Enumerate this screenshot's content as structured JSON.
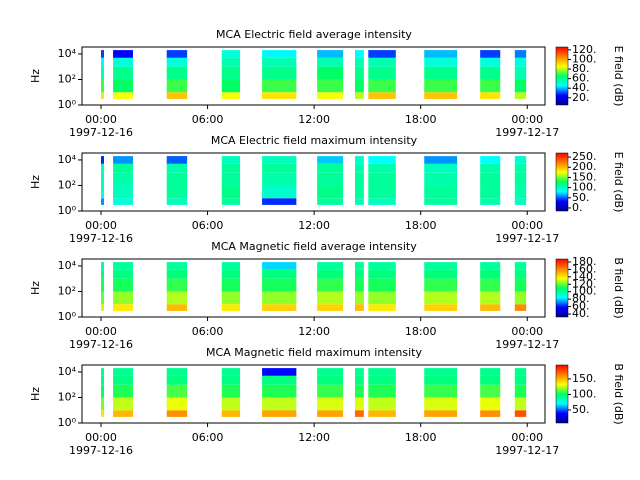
{
  "chart_data": [
    {
      "type": "heatmap",
      "title": "MCA  Electric field average intensity",
      "ylabel": "Hz",
      "colorbar_label": "E field (dB)",
      "xlim": [
        -1.07,
        25
      ],
      "xticks": [
        {
          "value": 0,
          "label": "00:00"
        },
        {
          "value": 6,
          "label": "06:00"
        },
        {
          "value": 12,
          "label": "12:00"
        },
        {
          "value": 18,
          "label": "18:00"
        },
        {
          "value": 24,
          "label": "00:00"
        }
      ],
      "xdates": [
        {
          "value": 0,
          "label": "1997-12-16"
        },
        {
          "value": 24,
          "label": "1997-12-17"
        }
      ],
      "ylim": [
        1,
        35000
      ],
      "log_y": true,
      "yticks": [
        {
          "value": 1,
          "label": "10⁰"
        },
        {
          "value": 100,
          "label": "10²"
        },
        {
          "value": 10000,
          "label": "10⁴"
        }
      ],
      "clim": [
        5,
        126
      ],
      "cticks": [
        {
          "value": 20,
          "label": "20."
        },
        {
          "value": 40,
          "label": "40."
        },
        {
          "value": 60,
          "label": "60."
        },
        {
          "value": 80,
          "label": "80."
        },
        {
          "value": 100,
          "label": "100."
        },
        {
          "value": 120,
          "label": "120."
        }
      ],
      "colormap": [
        "#00008f",
        "#0000ff",
        "#00ffff",
        "#00ff60",
        "#ffff00",
        "#ff8000",
        "#ff0000"
      ],
      "segments": [
        [
          0,
          0.17
        ],
        [
          0.68,
          1.8
        ],
        [
          3.7,
          4.85
        ],
        [
          6.8,
          7.83
        ],
        [
          9.07,
          11.0
        ],
        [
          12.17,
          13.63
        ],
        [
          14.3,
          14.8
        ],
        [
          15.05,
          16.6
        ],
        [
          18.2,
          20.05
        ],
        [
          21.35,
          22.48
        ],
        [
          23.3,
          23.94
        ]
      ],
      "bands": [
        3,
        10,
        100,
        1000,
        5000,
        20000
      ],
      "values": [
        [
          90,
          70,
          55,
          45,
          30
        ],
        [
          85,
          65,
          60,
          50,
          25
        ],
        [
          95,
          70,
          60,
          50,
          30
        ],
        [
          85,
          65,
          60,
          55,
          50
        ],
        [
          90,
          70,
          60,
          55,
          45
        ],
        [
          85,
          70,
          65,
          55,
          40
        ],
        [
          80,
          65,
          60,
          55,
          45
        ],
        [
          95,
          70,
          60,
          55,
          30
        ],
        [
          95,
          70,
          60,
          50,
          40
        ],
        [
          90,
          70,
          60,
          50,
          30
        ],
        [
          80,
          65,
          55,
          50,
          35
        ]
      ]
    },
    {
      "type": "heatmap",
      "title": "MCA  Electric field maximum intensity",
      "ylabel": "Hz",
      "colorbar_label": "E field (dB)",
      "xlim": [
        -1.07,
        25
      ],
      "xticks": [
        {
          "value": 0,
          "label": "00:00"
        },
        {
          "value": 6,
          "label": "06:00"
        },
        {
          "value": 12,
          "label": "12:00"
        },
        {
          "value": 18,
          "label": "18:00"
        },
        {
          "value": 24,
          "label": "00:00"
        }
      ],
      "xdates": [
        {
          "value": 0,
          "label": "1997-12-16"
        },
        {
          "value": 24,
          "label": "1997-12-17"
        }
      ],
      "ylim": [
        1,
        35000
      ],
      "log_y": true,
      "yticks": [
        {
          "value": 1,
          "label": "10⁰"
        },
        {
          "value": 100,
          "label": "10²"
        },
        {
          "value": 10000,
          "label": "10⁴"
        }
      ],
      "clim": [
        -15,
        270
      ],
      "cticks": [
        {
          "value": 0,
          "label": "0."
        },
        {
          "value": 50,
          "label": "50."
        },
        {
          "value": 100,
          "label": "100."
        },
        {
          "value": 150,
          "label": "150."
        },
        {
          "value": 200,
          "label": "200."
        },
        {
          "value": 250,
          "label": "250."
        }
      ],
      "colormap": [
        "#00008f",
        "#0000ff",
        "#00ffff",
        "#00ff60",
        "#ffff00",
        "#ff8000",
        "#ff0000"
      ],
      "segments": [
        [
          0,
          0.17
        ],
        [
          0.68,
          1.8
        ],
        [
          3.7,
          4.85
        ],
        [
          6.8,
          7.83
        ],
        [
          9.07,
          11.0
        ],
        [
          12.17,
          13.63
        ],
        [
          14.3,
          14.8
        ],
        [
          15.05,
          16.6
        ],
        [
          18.2,
          20.05
        ],
        [
          21.35,
          22.48
        ],
        [
          23.3,
          23.94
        ]
      ],
      "bands": [
        3,
        10,
        100,
        1000,
        5000,
        20000
      ],
      "values": [
        [
          60,
          95,
          100,
          100,
          40
        ],
        [
          90,
          100,
          105,
          110,
          60
        ],
        [
          100,
          110,
          110,
          105,
          50
        ],
        [
          110,
          115,
          110,
          110,
          100
        ],
        [
          40,
          95,
          105,
          110,
          100
        ],
        [
          110,
          115,
          110,
          110,
          70
        ],
        [
          100,
          110,
          110,
          105,
          95
        ],
        [
          100,
          110,
          110,
          105,
          80
        ],
        [
          110,
          110,
          105,
          100,
          60
        ],
        [
          105,
          110,
          110,
          105,
          80
        ],
        [
          100,
          105,
          110,
          105,
          95
        ]
      ]
    },
    {
      "type": "heatmap",
      "title": "MCA  Magnetic field average intensity",
      "ylabel": "Hz",
      "colorbar_label": "B field (dB)",
      "xlim": [
        -1.07,
        25
      ],
      "xticks": [
        {
          "value": 0,
          "label": "00:00"
        },
        {
          "value": 6,
          "label": "06:00"
        },
        {
          "value": 12,
          "label": "12:00"
        },
        {
          "value": 18,
          "label": "18:00"
        },
        {
          "value": 24,
          "label": "00:00"
        }
      ],
      "xdates": [
        {
          "value": 0,
          "label": "1997-12-16"
        },
        {
          "value": 24,
          "label": "1997-12-17"
        }
      ],
      "ylim": [
        1,
        35000
      ],
      "log_y": true,
      "yticks": [
        {
          "value": 1,
          "label": "10⁰"
        },
        {
          "value": 100,
          "label": "10²"
        },
        {
          "value": 10000,
          "label": "10⁴"
        }
      ],
      "clim": [
        32,
        188
      ],
      "cticks": [
        {
          "value": 40,
          "label": "40."
        },
        {
          "value": 60,
          "label": "60."
        },
        {
          "value": 80,
          "label": "80."
        },
        {
          "value": 100,
          "label": "100."
        },
        {
          "value": 120,
          "label": "120."
        },
        {
          "value": 140,
          "label": "140."
        },
        {
          "value": 160,
          "label": "160."
        },
        {
          "value": 180,
          "label": "180."
        }
      ],
      "colormap": [
        "#00008f",
        "#0000ff",
        "#00ffff",
        "#00ff60",
        "#ffff00",
        "#ff8000",
        "#ff0000"
      ],
      "segments": [
        [
          0,
          0.17
        ],
        [
          0.68,
          1.8
        ],
        [
          3.7,
          4.85
        ],
        [
          6.8,
          7.83
        ],
        [
          9.07,
          11.0
        ],
        [
          12.17,
          13.63
        ],
        [
          14.3,
          14.8
        ],
        [
          15.05,
          16.6
        ],
        [
          18.2,
          20.05
        ],
        [
          21.35,
          22.48
        ],
        [
          23.3,
          23.94
        ]
      ],
      "bands": [
        3,
        10,
        100,
        1000,
        5000,
        20000
      ],
      "values": [
        [
          130,
          120,
          112,
          105,
          100
        ],
        [
          140,
          125,
          112,
          105,
          100
        ],
        [
          150,
          128,
          115,
          106,
          100
        ],
        [
          140,
          125,
          112,
          105,
          100
        ],
        [
          145,
          125,
          112,
          105,
          80
        ],
        [
          145,
          128,
          115,
          106,
          100
        ],
        [
          150,
          125,
          112,
          105,
          100
        ],
        [
          140,
          125,
          112,
          105,
          100
        ],
        [
          145,
          128,
          115,
          106,
          100
        ],
        [
          150,
          128,
          115,
          106,
          100
        ],
        [
          160,
          125,
          112,
          105,
          100
        ]
      ]
    },
    {
      "type": "heatmap",
      "title": "MCA  Magnetic field maximum intensity",
      "ylabel": "Hz",
      "colorbar_label": "B field (dB)",
      "xlim": [
        -1.07,
        25
      ],
      "xticks": [
        {
          "value": 0,
          "label": "00:00"
        },
        {
          "value": 6,
          "label": "06:00"
        },
        {
          "value": 12,
          "label": "12:00"
        },
        {
          "value": 18,
          "label": "18:00"
        },
        {
          "value": 24,
          "label": "00:00"
        }
      ],
      "xdates": [
        {
          "value": 0,
          "label": "1997-12-16"
        },
        {
          "value": 24,
          "label": "1997-12-17"
        }
      ],
      "ylim": [
        1,
        35000
      ],
      "log_y": true,
      "yticks": [
        {
          "value": 1,
          "label": "10⁰"
        },
        {
          "value": 100,
          "label": "10²"
        },
        {
          "value": 10000,
          "label": "10⁴"
        }
      ],
      "clim": [
        8,
        195
      ],
      "cticks": [
        {
          "value": 50,
          "label": "50."
        },
        {
          "value": 100,
          "label": "100."
        },
        {
          "value": 150,
          "label": "150."
        }
      ],
      "colormap": [
        "#00008f",
        "#0000ff",
        "#00ffff",
        "#00ff60",
        "#ffff00",
        "#ff8000",
        "#ff0000"
      ],
      "segments": [
        [
          0,
          0.17
        ],
        [
          0.68,
          1.8
        ],
        [
          3.7,
          4.85
        ],
        [
          6.8,
          7.83
        ],
        [
          9.07,
          11.0
        ],
        [
          12.17,
          13.63
        ],
        [
          14.3,
          14.8
        ],
        [
          15.05,
          16.6
        ],
        [
          18.2,
          20.05
        ],
        [
          21.35,
          22.48
        ],
        [
          23.3,
          23.94
        ]
      ],
      "bands": [
        3,
        10,
        100,
        1000,
        5000,
        20000
      ],
      "values": [
        [
          140,
          115,
          100,
          95,
          92
        ],
        [
          150,
          125,
          105,
          95,
          92
        ],
        [
          160,
          130,
          110,
          96,
          92
        ],
        [
          150,
          125,
          105,
          95,
          92
        ],
        [
          155,
          125,
          105,
          95,
          40
        ],
        [
          155,
          128,
          108,
          96,
          92
        ],
        [
          170,
          128,
          105,
          95,
          92
        ],
        [
          150,
          125,
          105,
          95,
          92
        ],
        [
          155,
          128,
          108,
          96,
          92
        ],
        [
          160,
          130,
          110,
          96,
          92
        ],
        [
          175,
          125,
          105,
          95,
          92
        ]
      ]
    }
  ]
}
